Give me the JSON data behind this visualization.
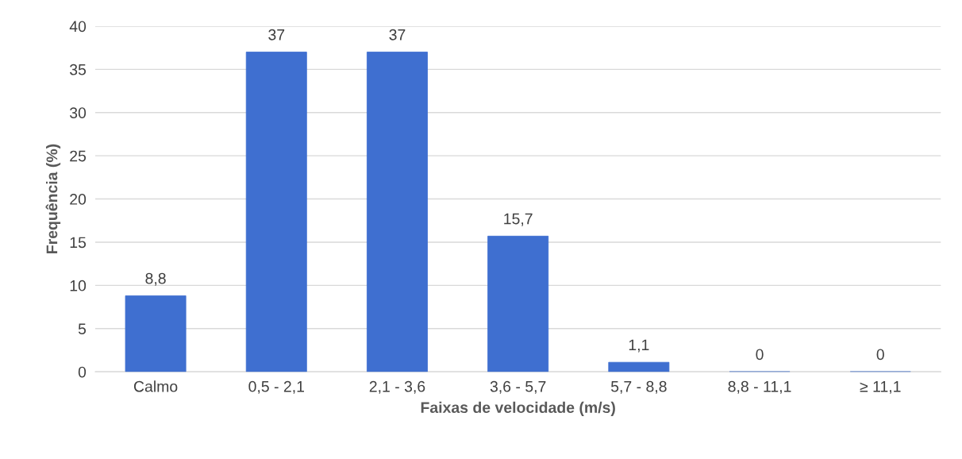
{
  "chart_data": {
    "type": "bar",
    "xlabel": "Faixas de velocidade (m/s)",
    "ylabel": "Frequência (%)",
    "categories": [
      "Calmo",
      "0,5 - 2,1",
      "2,1 - 3,6",
      "3,6 - 5,7",
      "5,7 - 8,8",
      "8,8 - 11,1",
      "≥ 11,1"
    ],
    "values": [
      8.8,
      37,
      37,
      15.7,
      1.1,
      0,
      0
    ],
    "value_labels": [
      "8,8",
      "37",
      "37",
      "15,7",
      "1,1",
      "0",
      "0"
    ],
    "color": "#3f6fd0",
    "ylim": [
      0,
      40
    ],
    "yticks": [
      0,
      5,
      10,
      15,
      20,
      25,
      30,
      35,
      40
    ],
    "grid": "y"
  }
}
